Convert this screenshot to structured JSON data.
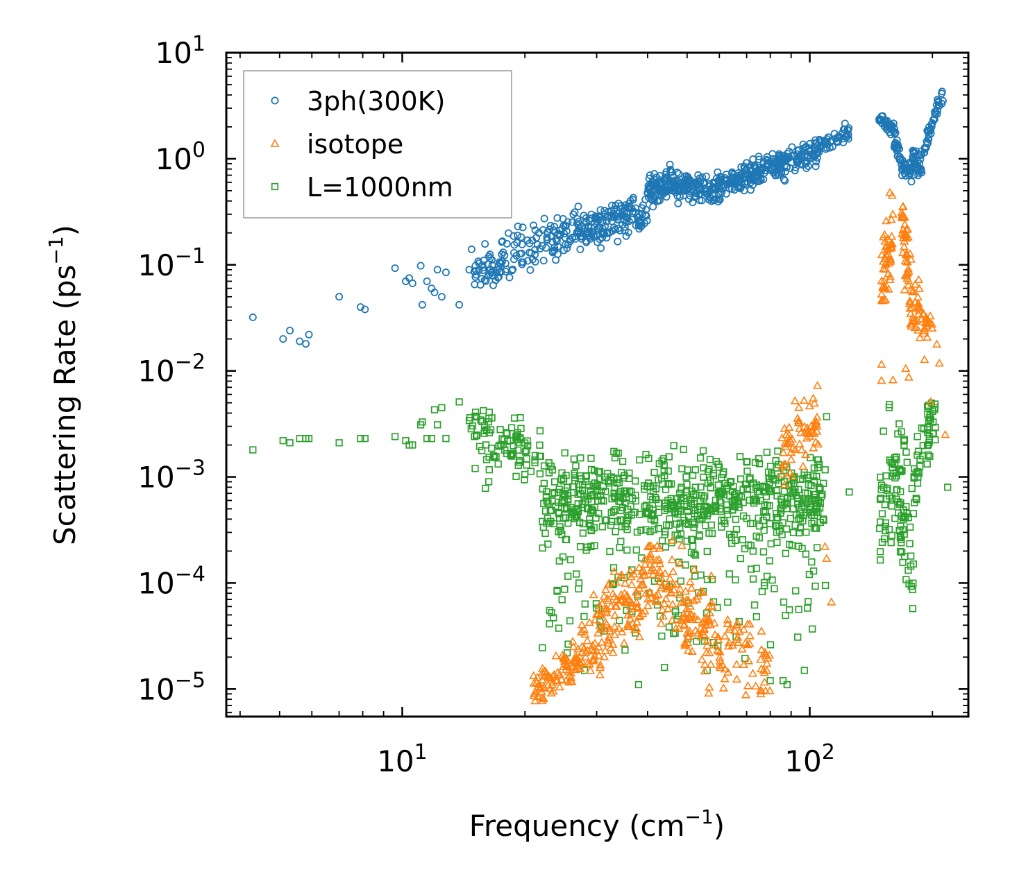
{
  "chart_data": {
    "type": "scatter",
    "title": "",
    "xlabel": "Frequency (cm",
    "xlabel_sup": "−1",
    "xlabel_end": ")",
    "ylabel": "Scattering Rate (ps",
    "ylabel_sup": "−1",
    "ylabel_end": ")",
    "xscale": "log",
    "yscale": "log",
    "xlim": [
      3.7,
      245
    ],
    "ylim": [
      5.5e-06,
      10
    ],
    "legend_position": "top-left",
    "x_ticks": [
      {
        "value": 10,
        "base": "10",
        "exp": "1"
      },
      {
        "value": 100,
        "base": "10",
        "exp": "2"
      }
    ],
    "y_ticks": [
      {
        "value": 10,
        "base": "10",
        "exp": "1"
      },
      {
        "value": 1,
        "base": "10",
        "exp": "0"
      },
      {
        "value": 0.1,
        "base": "10",
        "exp": "−1"
      },
      {
        "value": 0.01,
        "base": "10",
        "exp": "−2"
      },
      {
        "value": 0.001,
        "base": "10",
        "exp": "−3"
      },
      {
        "value": 0.0001,
        "base": "10",
        "exp": "−4"
      },
      {
        "value": 1e-05,
        "base": "10",
        "exp": "−5"
      }
    ],
    "series": [
      {
        "name": "3ph(300K)",
        "marker": "circle",
        "color": "#1f77b4",
        "points": [
          [
            4.3,
            0.032
          ],
          [
            5.1,
            0.02
          ],
          [
            5.3,
            0.024
          ],
          [
            5.6,
            0.019
          ],
          [
            5.8,
            0.018
          ],
          [
            5.9,
            0.022
          ],
          [
            7.0,
            0.05
          ],
          [
            7.9,
            0.04
          ],
          [
            8.1,
            0.038
          ],
          [
            9.6,
            0.093
          ],
          [
            10.2,
            0.07
          ],
          [
            10.4,
            0.075
          ],
          [
            10.6,
            0.067
          ],
          [
            11.1,
            0.098
          ],
          [
            11.2,
            0.042
          ],
          [
            11.5,
            0.07
          ],
          [
            11.8,
            0.06
          ],
          [
            12.0,
            0.055
          ],
          [
            12.2,
            0.09
          ],
          [
            12.5,
            0.05
          ],
          [
            12.8,
            0.085
          ],
          [
            13.8,
            0.042
          ],
          [
            14.6,
            0.09
          ],
          [
            14.8,
            0.14
          ]
        ],
        "bands": [
          {
            "x_from": 15,
            "x_to": 22,
            "y_from": 0.09,
            "y_to": 0.17,
            "n": 90,
            "spread": 0.16
          },
          {
            "x_from": 22,
            "x_to": 40,
            "y_from": 0.16,
            "y_to": 0.32,
            "n": 200,
            "spread": 0.14
          },
          {
            "x_from": 40,
            "x_to": 46,
            "y_from": 0.48,
            "y_to": 0.62,
            "n": 80,
            "spread": 0.1
          },
          {
            "x_from": 46,
            "x_to": 60,
            "y_from": 0.55,
            "y_to": 0.52,
            "n": 120,
            "spread": 0.1
          },
          {
            "x_from": 60,
            "x_to": 105,
            "y_from": 0.55,
            "y_to": 1.2,
            "n": 230,
            "spread": 0.1
          },
          {
            "x_from": 105,
            "x_to": 125,
            "y_from": 1.3,
            "y_to": 1.8,
            "n": 40,
            "spread": 0.06
          },
          {
            "x_from": 148,
            "x_to": 160,
            "y_from": 2.3,
            "y_to": 1.9,
            "n": 30,
            "spread": 0.05
          },
          {
            "x_from": 160,
            "x_to": 168,
            "y_from": 1.8,
            "y_to": 0.85,
            "n": 30,
            "spread": 0.08
          },
          {
            "x_from": 168,
            "x_to": 190,
            "y_from": 0.8,
            "y_to": 1.0,
            "n": 60,
            "spread": 0.1
          },
          {
            "x_from": 190,
            "x_to": 216,
            "y_from": 1.2,
            "y_to": 5.2,
            "n": 40,
            "spread": 0.06
          }
        ]
      },
      {
        "name": "isotope",
        "marker": "triangle",
        "color": "#ff7f0e",
        "points": [
          [
            92,
            0.0052
          ],
          [
            94,
            0.0045
          ],
          [
            102,
            0.0055
          ],
          [
            109,
            0.00022
          ],
          [
            110,
            0.00017
          ],
          [
            113,
            6.6e-05
          ],
          [
            150,
            0.0081
          ],
          [
            150,
            0.0115
          ],
          [
            160,
            0.0082
          ],
          [
            172,
            0.0105
          ],
          [
            175,
            0.0087
          ],
          [
            198,
            0.0051
          ],
          [
            205,
            0.0178
          ],
          [
            208,
            0.0118
          ],
          [
            215,
            0.0025
          ]
        ],
        "bands": [
          {
            "x_from": 21,
            "x_to": 27,
            "y_from": 1e-05,
            "y_to": 2e-05,
            "n": 80,
            "spread": 0.15
          },
          {
            "x_from": 27,
            "x_to": 40,
            "y_from": 2e-05,
            "y_to": 0.0001,
            "n": 140,
            "spread": 0.3
          },
          {
            "x_from": 40,
            "x_to": 60,
            "y_from": 0.00012,
            "y_to": 3e-05,
            "n": 140,
            "spread": 0.35
          },
          {
            "x_from": 60,
            "x_to": 80,
            "y_from": 3e-05,
            "y_to": 1.5e-05,
            "n": 60,
            "spread": 0.3
          },
          {
            "x_from": 85,
            "x_to": 105,
            "y_from": 0.0015,
            "y_to": 0.0035,
            "n": 60,
            "spread": 0.2
          },
          {
            "x_from": 150,
            "x_to": 160,
            "y_from": 0.05,
            "y_to": 0.25,
            "n": 50,
            "spread": 0.3
          },
          {
            "x_from": 168,
            "x_to": 178,
            "y_from": 0.25,
            "y_to": 0.05,
            "n": 50,
            "spread": 0.3
          },
          {
            "x_from": 178,
            "x_to": 200,
            "y_from": 0.05,
            "y_to": 0.02,
            "n": 40,
            "spread": 0.2
          }
        ]
      },
      {
        "name": "L=1000nm",
        "marker": "square",
        "color": "#2ca02c",
        "points": [
          [
            4.3,
            0.0018
          ],
          [
            5.1,
            0.0022
          ],
          [
            5.3,
            0.0021
          ],
          [
            5.6,
            0.0023
          ],
          [
            5.8,
            0.0023
          ],
          [
            5.9,
            0.0023
          ],
          [
            7.0,
            0.0021
          ],
          [
            7.9,
            0.0023
          ],
          [
            8.1,
            0.0023
          ],
          [
            9.6,
            0.0024
          ],
          [
            10.2,
            0.0022
          ],
          [
            10.4,
            0.002
          ],
          [
            10.6,
            0.002
          ],
          [
            11.1,
            0.0031
          ],
          [
            11.2,
            0.0033
          ],
          [
            11.5,
            0.0023
          ],
          [
            11.8,
            0.0023
          ],
          [
            12.0,
            0.0043
          ],
          [
            12.2,
            0.0031
          ],
          [
            12.5,
            0.0045
          ],
          [
            12.8,
            0.0023
          ],
          [
            13.8,
            0.0051
          ],
          [
            14.6,
            0.0034
          ],
          [
            16.0,
            0.00078
          ],
          [
            16.3,
            0.0009
          ],
          [
            23,
            5.5e-05
          ],
          [
            23.5,
            4.7e-05
          ],
          [
            28,
            1.5e-05
          ],
          [
            38,
            1.1e-05
          ],
          [
            44,
            1.6e-05
          ],
          [
            56,
            1.5e-05
          ],
          [
            80,
            1.2e-05
          ],
          [
            86,
            1.2e-05
          ],
          [
            88,
            1.1e-05
          ],
          [
            97,
            1.5e-05
          ],
          [
            110,
            0.0037
          ],
          [
            125,
            0.00072
          ],
          [
            218,
            0.0008
          ]
        ],
        "bands": [
          {
            "x_from": 14.5,
            "x_to": 22,
            "y_from": 0.0025,
            "y_to": 0.0016,
            "n": 90,
            "spread": 0.2
          },
          {
            "x_from": 22,
            "x_to": 110,
            "y_from": 0.0006,
            "y_to": 0.0006,
            "n": 650,
            "spread": 0.3
          },
          {
            "x_from": 22,
            "x_to": 110,
            "y_from": 8e-05,
            "y_to": 8e-05,
            "n": 130,
            "spread": 0.45
          },
          {
            "x_from": 148,
            "x_to": 165,
            "y_from": 0.0004,
            "y_to": 0.001,
            "n": 50,
            "spread": 0.5
          },
          {
            "x_from": 165,
            "x_to": 180,
            "y_from": 0.001,
            "y_to": 0.0002,
            "n": 50,
            "spread": 0.6
          },
          {
            "x_from": 180,
            "x_to": 205,
            "y_from": 0.001,
            "y_to": 0.004,
            "n": 50,
            "spread": 0.2
          }
        ]
      }
    ]
  }
}
